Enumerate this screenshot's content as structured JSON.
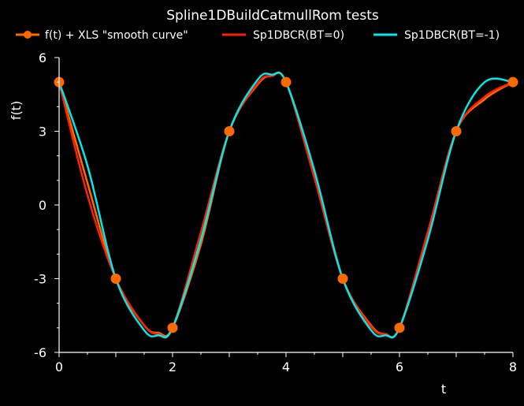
{
  "chart_data": {
    "type": "line",
    "title": "Spline1DBuildCatmullRom tests",
    "xlabel": "t",
    "ylabel": "f(t)",
    "xlim": [
      0,
      8
    ],
    "ylim": [
      -6,
      6
    ],
    "x_ticks": [
      "0",
      "2",
      "4",
      "6",
      "8"
    ],
    "y_ticks": [
      "6",
      "3",
      "0",
      "-3",
      "-6"
    ],
    "grid": false,
    "legend_position": "top",
    "background": "#000000",
    "series": [
      {
        "name": "f(t) + XLS \"smooth curve\"",
        "color": "#ff6a00",
        "marker": "circle",
        "x": [
          0,
          1,
          2,
          3,
          4,
          5,
          6,
          7,
          8
        ],
        "y": [
          5,
          -3,
          -5,
          3,
          5,
          -3,
          -5,
          3,
          5
        ],
        "curve": {
          "x": [
            0,
            0.5,
            1,
            1.5,
            1.75,
            2,
            2.5,
            3,
            3.5,
            3.75,
            4,
            4.5,
            5,
            5.5,
            5.75,
            6,
            6.5,
            7,
            7.5,
            8
          ],
          "y": [
            5,
            0.9,
            -3,
            -4.9,
            -5.2,
            -5,
            -1.6,
            3,
            4.9,
            5.25,
            5,
            1.2,
            -3,
            -4.9,
            -5.25,
            -5,
            -1.1,
            3,
            4.3,
            5
          ]
        }
      },
      {
        "name": "Sp1DBCR(BT=0)",
        "color": "#ff2200",
        "x": [
          0,
          0.5,
          1,
          1.5,
          1.75,
          2,
          2.5,
          3,
          3.5,
          3.75,
          4,
          4.5,
          5,
          5.5,
          5.75,
          6,
          6.5,
          7,
          7.5,
          8
        ],
        "y": [
          5,
          0.4,
          -3,
          -4.9,
          -5.25,
          -5,
          -1.1,
          3,
          4.95,
          5.25,
          5,
          1.1,
          -3,
          -4.95,
          -5.25,
          -5,
          -1.1,
          3,
          4.4,
          5
        ]
      },
      {
        "name": "Sp1DBCR(BT=-1)",
        "color": "#00e8e8",
        "x": [
          0,
          0.5,
          1,
          1.5,
          1.75,
          2,
          2.5,
          3,
          3.5,
          3.75,
          4,
          4.5,
          5,
          5.5,
          5.75,
          6,
          6.5,
          7,
          7.5,
          8
        ],
        "y": [
          5,
          1.6,
          -3,
          -5.1,
          -5.3,
          -5,
          -1.4,
          3,
          5.1,
          5.3,
          5,
          1.4,
          -3,
          -5.1,
          -5.3,
          -5,
          -1.4,
          3,
          5.0,
          5
        ]
      }
    ]
  }
}
